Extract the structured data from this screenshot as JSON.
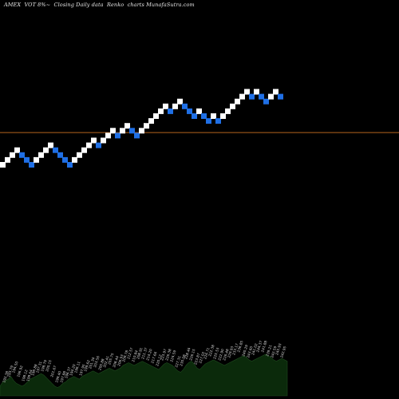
{
  "title": "AMEX  VOT 8%~  Closing Daily data  Renko  charts MunafaSutra.com",
  "chart_data": {
    "type": "renko",
    "ylabel": "",
    "xlabel": "",
    "grid": false,
    "colors": {
      "background": "#000000",
      "up_brick": "#ffffff",
      "down_brick": "#1f6fe5",
      "reference_line": "#b5651d",
      "volume_area": "#0b2a0b",
      "volume_labels": "#d8d8d8"
    },
    "reference_level_brick": 8.2,
    "bricks": [
      {
        "dir": "up",
        "level": 1
      },
      {
        "dir": "up",
        "level": 2
      },
      {
        "dir": "up",
        "level": 3
      },
      {
        "dir": "up",
        "level": 4
      },
      {
        "dir": "down",
        "level": 3
      },
      {
        "dir": "down",
        "level": 2
      },
      {
        "dir": "down",
        "level": 1
      },
      {
        "dir": "up",
        "level": 2
      },
      {
        "dir": "up",
        "level": 3
      },
      {
        "dir": "up",
        "level": 4
      },
      {
        "dir": "up",
        "level": 5
      },
      {
        "dir": "down",
        "level": 4
      },
      {
        "dir": "down",
        "level": 3
      },
      {
        "dir": "down",
        "level": 2
      },
      {
        "dir": "down",
        "level": 1
      },
      {
        "dir": "up",
        "level": 2
      },
      {
        "dir": "up",
        "level": 3
      },
      {
        "dir": "up",
        "level": 4
      },
      {
        "dir": "up",
        "level": 5
      },
      {
        "dir": "up",
        "level": 6
      },
      {
        "dir": "down",
        "level": 5
      },
      {
        "dir": "up",
        "level": 6
      },
      {
        "dir": "up",
        "level": 7
      },
      {
        "dir": "up",
        "level": 8
      },
      {
        "dir": "down",
        "level": 7
      },
      {
        "dir": "up",
        "level": 8
      },
      {
        "dir": "up",
        "level": 9
      },
      {
        "dir": "down",
        "level": 8
      },
      {
        "dir": "down",
        "level": 7
      },
      {
        "dir": "up",
        "level": 8
      },
      {
        "dir": "up",
        "level": 9
      },
      {
        "dir": "up",
        "level": 10
      },
      {
        "dir": "up",
        "level": 11
      },
      {
        "dir": "up",
        "level": 12
      },
      {
        "dir": "up",
        "level": 13
      },
      {
        "dir": "down",
        "level": 12
      },
      {
        "dir": "up",
        "level": 13
      },
      {
        "dir": "up",
        "level": 14
      },
      {
        "dir": "down",
        "level": 13
      },
      {
        "dir": "down",
        "level": 12
      },
      {
        "dir": "down",
        "level": 11
      },
      {
        "dir": "up",
        "level": 12
      },
      {
        "dir": "down",
        "level": 11
      },
      {
        "dir": "down",
        "level": 10
      },
      {
        "dir": "up",
        "level": 11
      },
      {
        "dir": "down",
        "level": 10
      },
      {
        "dir": "up",
        "level": 11
      },
      {
        "dir": "up",
        "level": 12
      },
      {
        "dir": "up",
        "level": 13
      },
      {
        "dir": "up",
        "level": 14
      },
      {
        "dir": "up",
        "level": 15
      },
      {
        "dir": "up",
        "level": 16
      },
      {
        "dir": "down",
        "level": 15
      },
      {
        "dir": "up",
        "level": 16
      },
      {
        "dir": "down",
        "level": 15
      },
      {
        "dir": "down",
        "level": 14
      },
      {
        "dir": "up",
        "level": 15
      },
      {
        "dir": "up",
        "level": 16
      },
      {
        "dir": "down",
        "level": 15
      }
    ],
    "volume": [
      14,
      20,
      22,
      24,
      28,
      22,
      18,
      16,
      14,
      16,
      20,
      24,
      26,
      28,
      30,
      32,
      30,
      26,
      22,
      18,
      14,
      12,
      14,
      18,
      20,
      24,
      26,
      28,
      26,
      24,
      28,
      30,
      32,
      34,
      36,
      34,
      32,
      34,
      36,
      38,
      40,
      38,
      36,
      38,
      40,
      44,
      46,
      48,
      46,
      44,
      46,
      48,
      50,
      48,
      46,
      44,
      42,
      40,
      38,
      42,
      46,
      48,
      46,
      44,
      40,
      36,
      34,
      38,
      44,
      48,
      50,
      46,
      40,
      38,
      42,
      46,
      48,
      50,
      52,
      50,
      48,
      46,
      44,
      46,
      48,
      50,
      52,
      54,
      56,
      58,
      56,
      52,
      50,
      52,
      54,
      56,
      58,
      60,
      58,
      56,
      52,
      50,
      52,
      54,
      52,
      50
    ],
    "price_labels": [
      "192.38",
      "193.79",
      "194.50",
      "196.92",
      "198.12",
      "199.64",
      "196.88",
      "197.31",
      "198.79",
      "200.15",
      "201.67",
      "199.40",
      "197.88",
      "196.37",
      "194.20",
      "196.11",
      "197.95",
      "199.62",
      "201.34",
      "203.56",
      "200.88",
      "202.41",
      "205.75",
      "208.44",
      "206.93",
      "209.78",
      "212.57",
      "210.84",
      "208.91",
      "211.37",
      "214.20",
      "217.66",
      "220.12",
      "223.97",
      "226.38",
      "224.59",
      "227.31",
      "230.08",
      "228.44",
      "226.15",
      "223.87",
      "227.02",
      "224.71",
      "222.38",
      "225.53",
      "222.90",
      "226.48",
      "229.93",
      "233.17",
      "236.85",
      "240.29",
      "243.60",
      "241.02",
      "244.37",
      "241.88",
      "239.21",
      "242.59",
      "245.93",
      "242.95"
    ]
  }
}
